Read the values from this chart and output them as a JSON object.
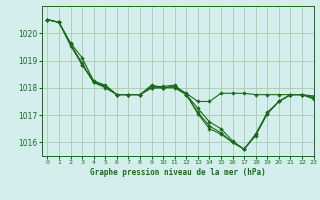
{
  "title": "Graphe pression niveau de la mer (hPa)",
  "bg_color": "#d4eeed",
  "grid_color": "#a8cca8",
  "line_color": "#1a6b1a",
  "marker_color": "#1a6b1a",
  "xlim": [
    -0.5,
    23
  ],
  "ylim": [
    1015.5,
    1021.0
  ],
  "yticks": [
    1016,
    1017,
    1018,
    1019,
    1020
  ],
  "xticks": [
    0,
    1,
    2,
    3,
    4,
    5,
    6,
    7,
    8,
    9,
    10,
    11,
    12,
    13,
    14,
    15,
    16,
    17,
    18,
    19,
    20,
    21,
    22,
    23
  ],
  "series": [
    [
      1020.5,
      1020.4,
      1019.65,
      1019.1,
      1018.25,
      1018.1,
      1017.75,
      1017.75,
      1017.75,
      1018.1,
      1018.0,
      1018.05,
      1017.8,
      1017.5,
      1017.5,
      1017.8,
      1017.8,
      1017.8,
      1017.75,
      1017.75,
      1017.75,
      1017.75,
      1017.75,
      1017.7
    ],
    [
      1020.5,
      1020.4,
      1019.6,
      1018.85,
      1018.25,
      1018.05,
      1017.75,
      1017.75,
      1017.75,
      1018.05,
      1018.05,
      1018.1,
      1017.75,
      1017.25,
      1016.75,
      1016.5,
      1016.05,
      1015.75,
      1016.3,
      1017.1,
      1017.5,
      1017.75,
      1017.75,
      1017.65
    ],
    [
      1020.5,
      1020.4,
      1019.6,
      1018.9,
      1018.2,
      1018.05,
      1017.75,
      1017.75,
      1017.75,
      1018.0,
      1018.0,
      1018.05,
      1017.75,
      1017.1,
      1016.6,
      1016.35,
      1016.0,
      1015.75,
      1016.25,
      1017.05,
      1017.5,
      1017.75,
      1017.75,
      1017.6
    ],
    [
      1020.5,
      1020.4,
      1019.55,
      1018.85,
      1018.2,
      1018.0,
      1017.75,
      1017.75,
      1017.75,
      1018.0,
      1018.0,
      1018.0,
      1017.75,
      1017.05,
      1016.5,
      1016.3,
      1016.0,
      1015.75,
      1016.3,
      1017.05,
      1017.5,
      1017.75,
      1017.75,
      1017.6
    ]
  ]
}
